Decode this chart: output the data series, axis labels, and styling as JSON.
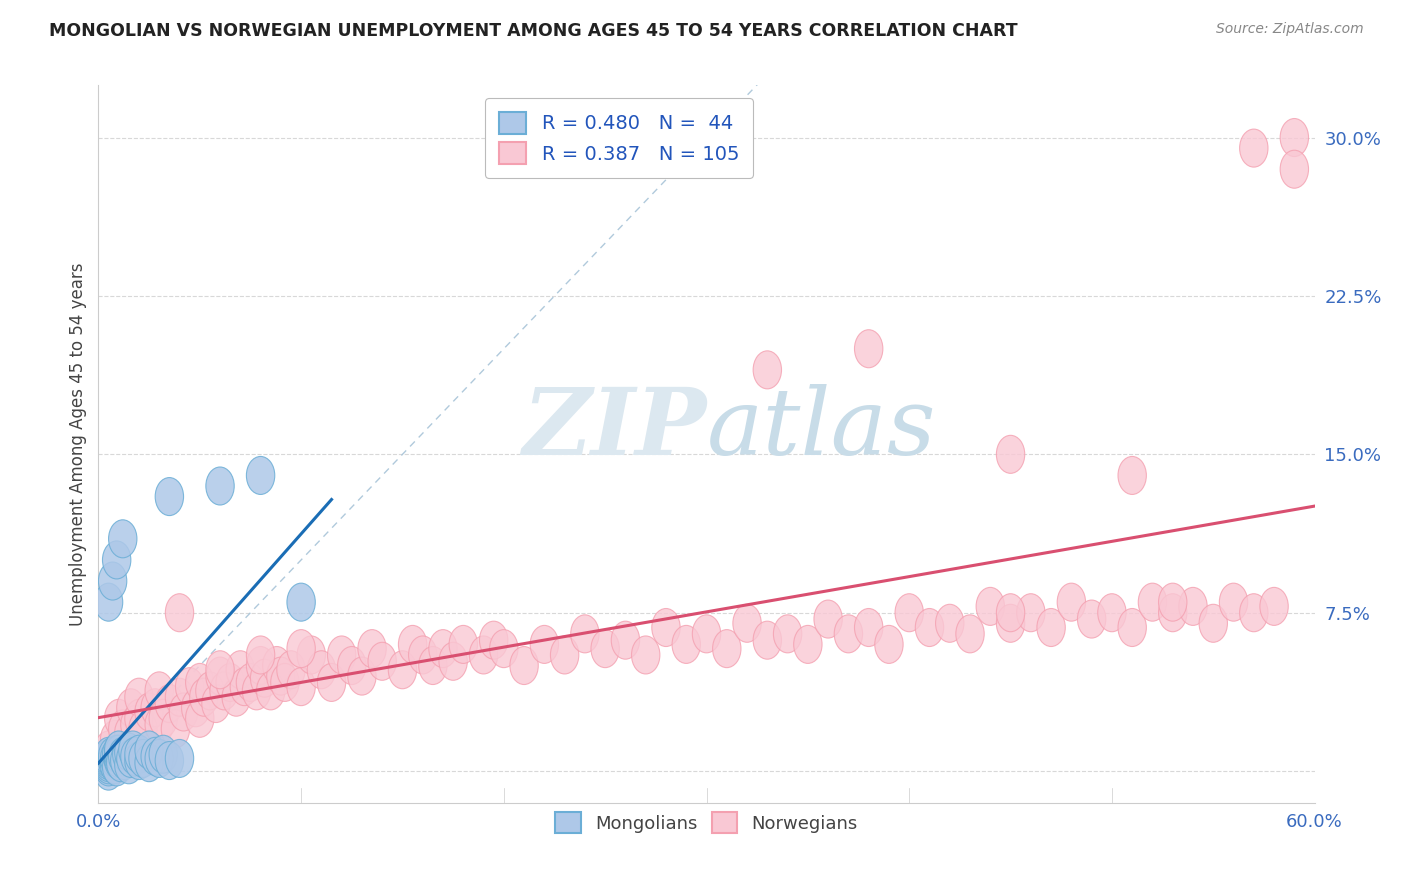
{
  "title": "MONGOLIAN VS NORWEGIAN UNEMPLOYMENT AMONG AGES 45 TO 54 YEARS CORRELATION CHART",
  "source": "Source: ZipAtlas.com",
  "ylabel": "Unemployment Among Ages 45 to 54 years",
  "yticks": [
    0.0,
    0.075,
    0.15,
    0.225,
    0.3
  ],
  "ytick_labels": [
    "",
    "7.5%",
    "15.0%",
    "22.5%",
    "30.0%"
  ],
  "xlim": [
    0.0,
    0.6
  ],
  "ylim": [
    -0.015,
    0.325
  ],
  "mongolian_edge": "#6baed6",
  "mongolian_face": "#aec8e8",
  "norwegian_edge": "#f4a0b0",
  "norwegian_face": "#f9c8d4",
  "mongolian_line_color": "#1a6db5",
  "norwegian_line_color": "#d94f70",
  "diagonal_color": "#a8c4d8",
  "watermark_color": "#dce8f0",
  "grid_color": "#d8d8d8",
  "mongolians_x": [
    0.005,
    0.005,
    0.005,
    0.005,
    0.005,
    0.005,
    0.005,
    0.007,
    0.007,
    0.008,
    0.008,
    0.009,
    0.009,
    0.01,
    0.01,
    0.01,
    0.01,
    0.011,
    0.012,
    0.013,
    0.014,
    0.015,
    0.015,
    0.016,
    0.017,
    0.018,
    0.02,
    0.02,
    0.022,
    0.025,
    0.025,
    0.028,
    0.03,
    0.032,
    0.035,
    0.04,
    0.005,
    0.007,
    0.009,
    0.012,
    0.035,
    0.06,
    0.08,
    0.1
  ],
  "mongolians_y": [
    0.0,
    0.002,
    0.003,
    0.004,
    0.005,
    0.006,
    0.007,
    0.005,
    0.007,
    0.003,
    0.006,
    0.002,
    0.008,
    0.005,
    0.006,
    0.008,
    0.01,
    0.004,
    0.007,
    0.005,
    0.008,
    0.003,
    0.009,
    0.006,
    0.01,
    0.007,
    0.005,
    0.008,
    0.006,
    0.004,
    0.01,
    0.007,
    0.006,
    0.008,
    0.005,
    0.006,
    0.08,
    0.09,
    0.1,
    0.11,
    0.13,
    0.135,
    0.14,
    0.08
  ],
  "norwegians_x": [
    0.005,
    0.008,
    0.01,
    0.012,
    0.015,
    0.016,
    0.018,
    0.02,
    0.02,
    0.022,
    0.025,
    0.028,
    0.03,
    0.03,
    0.032,
    0.035,
    0.038,
    0.04,
    0.042,
    0.045,
    0.048,
    0.05,
    0.05,
    0.052,
    0.055,
    0.058,
    0.06,
    0.062,
    0.065,
    0.068,
    0.07,
    0.072,
    0.075,
    0.078,
    0.08,
    0.082,
    0.085,
    0.088,
    0.09,
    0.092,
    0.095,
    0.1,
    0.105,
    0.11,
    0.115,
    0.12,
    0.125,
    0.13,
    0.135,
    0.14,
    0.15,
    0.155,
    0.16,
    0.165,
    0.17,
    0.175,
    0.18,
    0.19,
    0.195,
    0.2,
    0.21,
    0.22,
    0.23,
    0.24,
    0.25,
    0.26,
    0.27,
    0.28,
    0.29,
    0.3,
    0.31,
    0.32,
    0.33,
    0.34,
    0.35,
    0.36,
    0.37,
    0.38,
    0.39,
    0.4,
    0.41,
    0.42,
    0.43,
    0.44,
    0.45,
    0.46,
    0.47,
    0.48,
    0.49,
    0.5,
    0.51,
    0.52,
    0.53,
    0.54,
    0.55,
    0.56,
    0.57,
    0.58,
    0.04,
    0.06,
    0.08,
    0.1,
    0.45,
    0.53,
    0.59
  ],
  "norwegians_y": [
    0.01,
    0.015,
    0.025,
    0.02,
    0.018,
    0.03,
    0.022,
    0.025,
    0.035,
    0.02,
    0.028,
    0.03,
    0.022,
    0.038,
    0.025,
    0.032,
    0.02,
    0.035,
    0.028,
    0.04,
    0.03,
    0.042,
    0.025,
    0.035,
    0.038,
    0.032,
    0.045,
    0.038,
    0.042,
    0.035,
    0.048,
    0.04,
    0.042,
    0.038,
    0.05,
    0.044,
    0.038,
    0.05,
    0.045,
    0.042,
    0.048,
    0.04,
    0.055,
    0.048,
    0.042,
    0.055,
    0.05,
    0.045,
    0.058,
    0.052,
    0.048,
    0.06,
    0.055,
    0.05,
    0.058,
    0.052,
    0.06,
    0.055,
    0.062,
    0.058,
    0.05,
    0.06,
    0.055,
    0.065,
    0.058,
    0.062,
    0.055,
    0.068,
    0.06,
    0.065,
    0.058,
    0.07,
    0.062,
    0.065,
    0.06,
    0.072,
    0.065,
    0.068,
    0.06,
    0.075,
    0.068,
    0.07,
    0.065,
    0.078,
    0.07,
    0.075,
    0.068,
    0.08,
    0.072,
    0.075,
    0.068,
    0.08,
    0.075,
    0.078,
    0.07,
    0.08,
    0.075,
    0.078,
    0.075,
    0.048,
    0.055,
    0.058,
    0.075,
    0.08,
    0.3
  ],
  "norwegian_outliers_x": [
    0.33,
    0.38,
    0.45,
    0.51,
    0.57,
    0.59
  ],
  "norwegian_outliers_y": [
    0.19,
    0.2,
    0.15,
    0.14,
    0.295,
    0.285
  ],
  "legend1_label": "R = 0.480   N =  44",
  "legend2_label": "R = 0.387   N = 105"
}
